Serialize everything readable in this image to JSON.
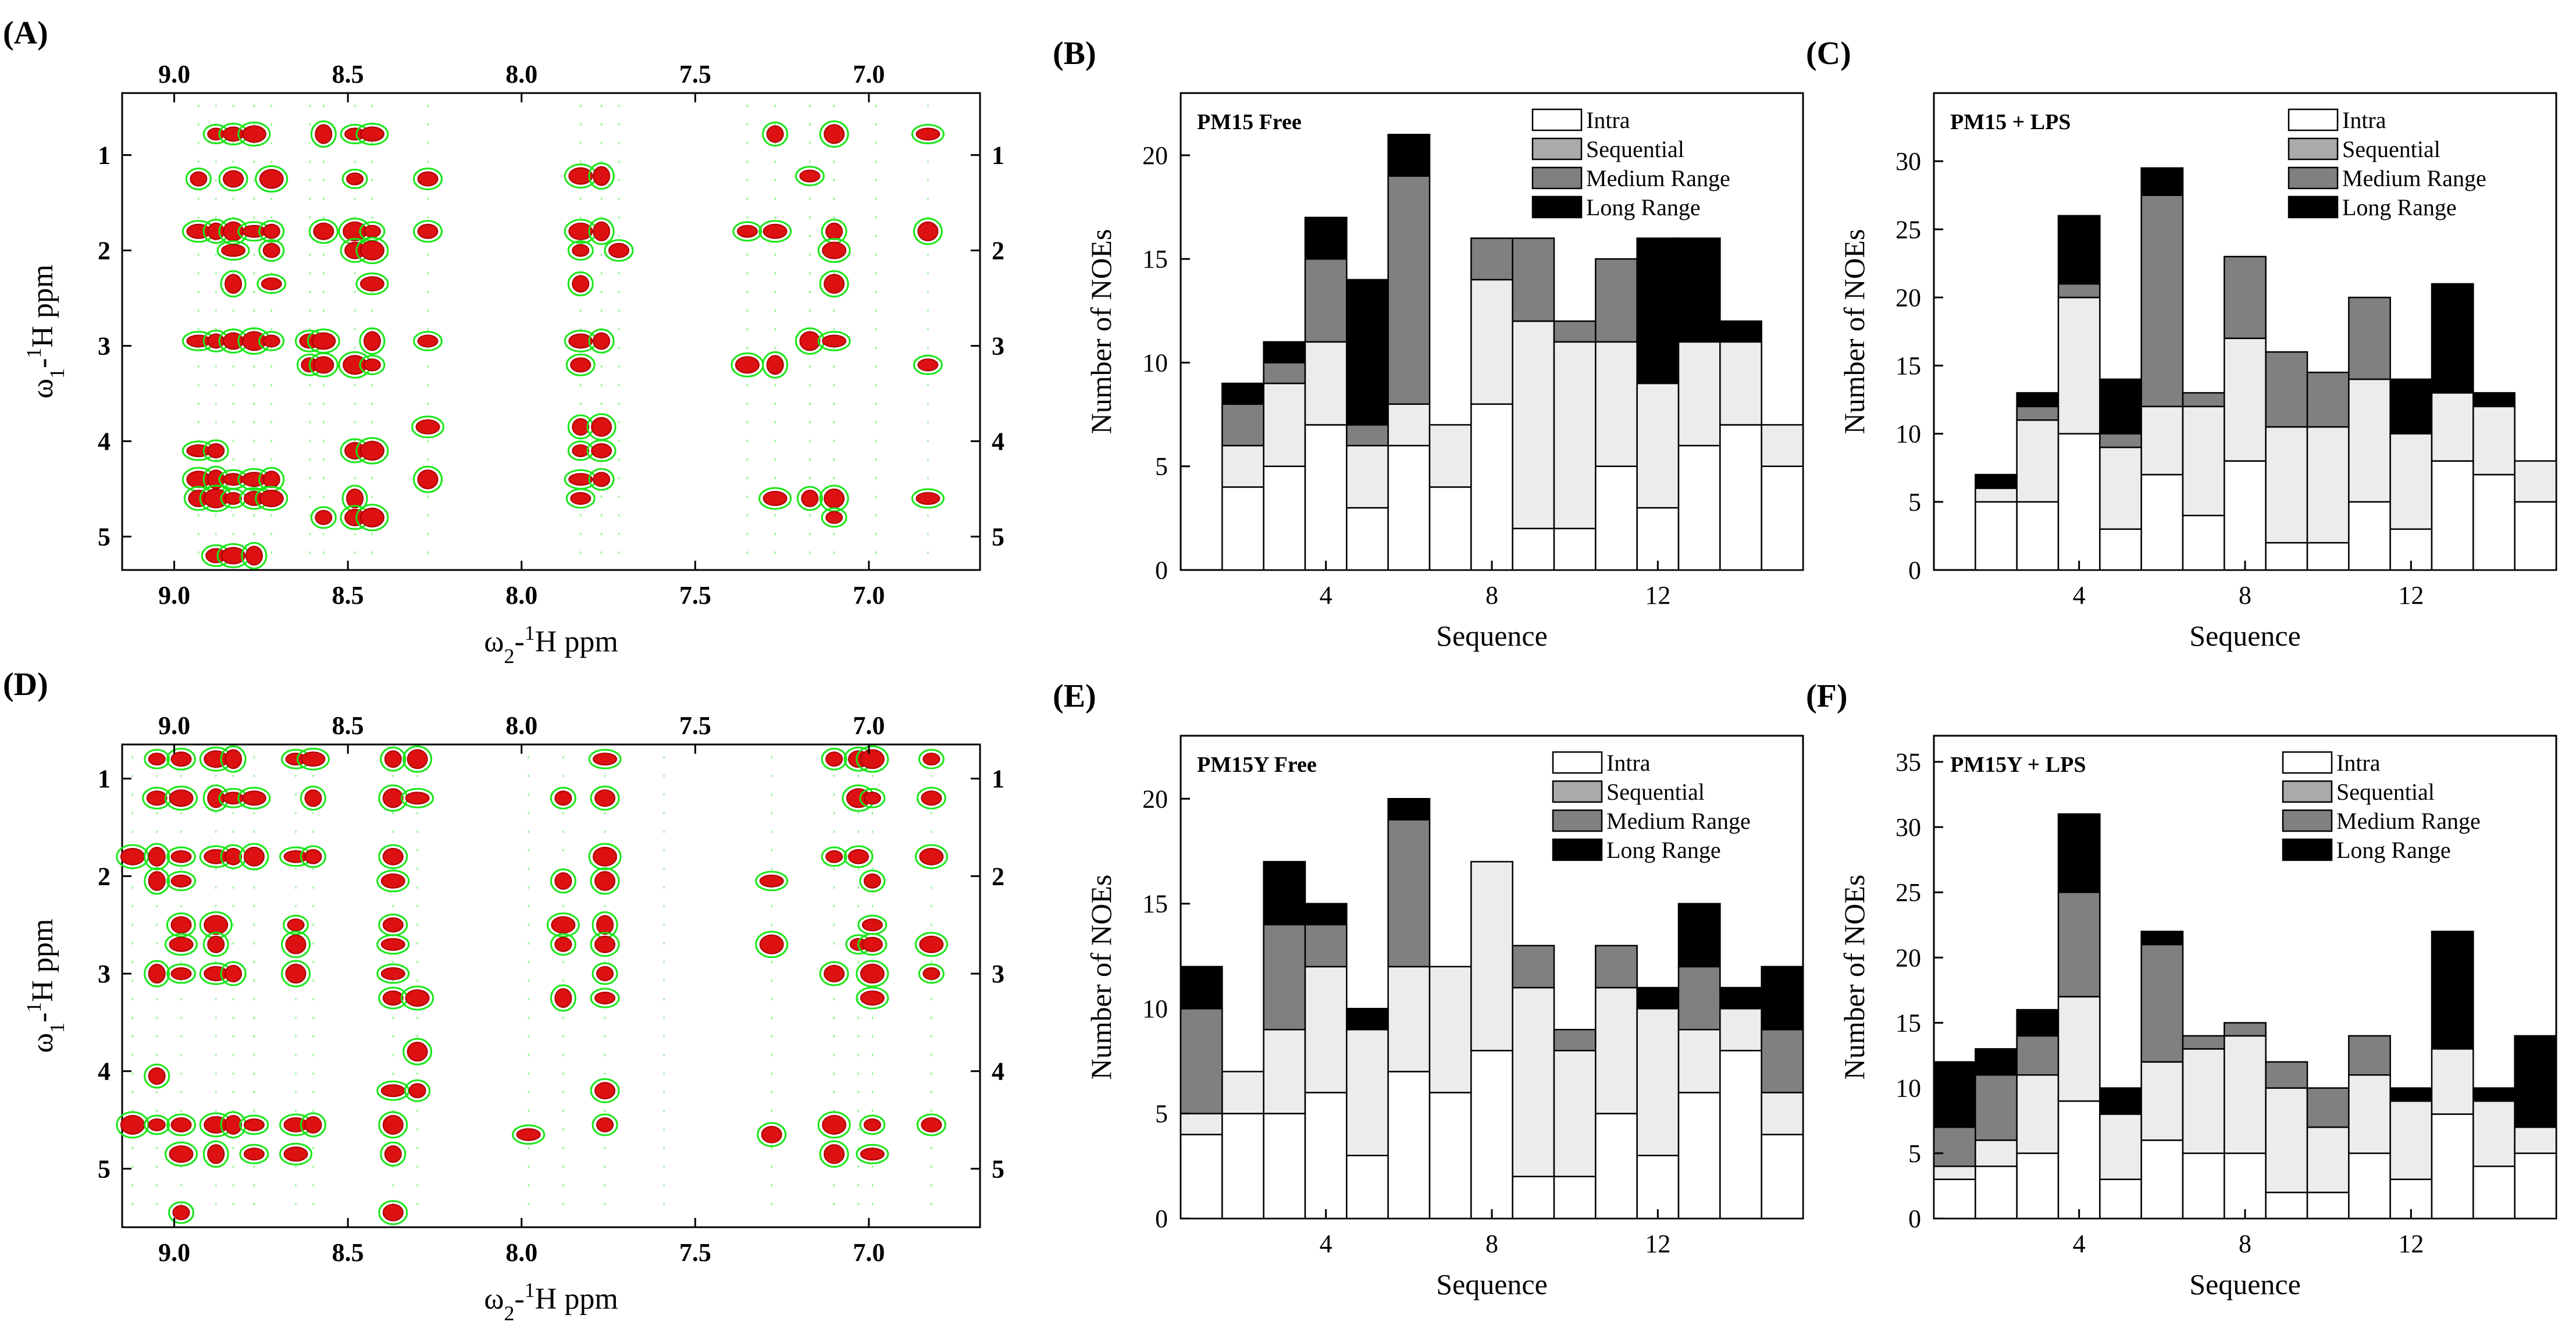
{
  "colors": {
    "nmr_outer": "#19e619",
    "nmr_inner": "#dd1111",
    "intra": "#ffffff",
    "sequential": "#ececec",
    "medium": "#808080",
    "long": "#000000"
  },
  "legend_labels": [
    "Intra",
    "Sequential",
    "Medium Range",
    "Long Range"
  ],
  "nmr_panels": [
    {
      "label": "(A)",
      "x_axis_label": "ω2-1H ppm",
      "y_axis_label": "ω1-1H ppm",
      "x_ticks": [
        "9.0",
        "8.5",
        "8.0",
        "7.5",
        "7.0"
      ],
      "y_ticks": [
        "1",
        "2",
        "3",
        "4",
        "5"
      ],
      "columns_ppm": [
        8.93,
        8.88,
        8.83,
        8.77,
        8.72,
        8.61,
        8.57,
        8.48,
        8.43,
        8.27,
        7.83,
        7.77,
        7.72,
        7.35,
        7.27,
        7.17,
        7.1,
        6.98,
        6.83
      ],
      "peaks": [
        [
          8.88,
          0.78
        ],
        [
          8.83,
          0.78
        ],
        [
          8.77,
          0.78
        ],
        [
          8.57,
          0.78
        ],
        [
          8.48,
          0.78
        ],
        [
          8.43,
          0.78
        ],
        [
          7.27,
          0.78
        ],
        [
          7.1,
          0.78
        ],
        [
          6.83,
          0.78
        ],
        [
          8.93,
          1.25
        ],
        [
          8.83,
          1.25
        ],
        [
          8.72,
          1.25
        ],
        [
          8.48,
          1.25
        ],
        [
          8.27,
          1.25
        ],
        [
          7.83,
          1.22
        ],
        [
          7.77,
          1.22
        ],
        [
          7.17,
          1.22
        ],
        [
          8.93,
          1.8
        ],
        [
          8.88,
          1.8
        ],
        [
          8.83,
          1.8
        ],
        [
          8.77,
          1.8
        ],
        [
          8.72,
          1.8
        ],
        [
          8.57,
          1.8
        ],
        [
          8.48,
          1.8
        ],
        [
          8.43,
          1.8
        ],
        [
          8.27,
          1.8
        ],
        [
          7.83,
          1.8
        ],
        [
          7.77,
          1.8
        ],
        [
          7.35,
          1.8
        ],
        [
          7.27,
          1.8
        ],
        [
          7.1,
          1.8
        ],
        [
          6.83,
          1.8
        ],
        [
          8.83,
          2.0
        ],
        [
          8.72,
          2.0
        ],
        [
          8.48,
          2.0
        ],
        [
          8.43,
          2.0
        ],
        [
          7.83,
          2.0
        ],
        [
          7.72,
          2.0
        ],
        [
          7.1,
          2.0
        ],
        [
          8.83,
          2.35
        ],
        [
          8.72,
          2.35
        ],
        [
          8.43,
          2.35
        ],
        [
          7.83,
          2.35
        ],
        [
          7.1,
          2.35
        ],
        [
          8.93,
          2.95
        ],
        [
          8.88,
          2.95
        ],
        [
          8.83,
          2.95
        ],
        [
          8.77,
          2.95
        ],
        [
          8.72,
          2.95
        ],
        [
          8.61,
          2.95
        ],
        [
          8.57,
          2.95
        ],
        [
          8.43,
          2.95
        ],
        [
          8.27,
          2.95
        ],
        [
          7.83,
          2.95
        ],
        [
          7.77,
          2.95
        ],
        [
          7.17,
          2.95
        ],
        [
          7.1,
          2.95
        ],
        [
          8.61,
          3.2
        ],
        [
          8.57,
          3.2
        ],
        [
          8.48,
          3.2
        ],
        [
          8.43,
          3.2
        ],
        [
          7.83,
          3.2
        ],
        [
          7.35,
          3.2
        ],
        [
          7.27,
          3.2
        ],
        [
          6.83,
          3.2
        ],
        [
          8.27,
          3.85
        ],
        [
          7.83,
          3.85
        ],
        [
          7.77,
          3.85
        ],
        [
          8.93,
          4.1
        ],
        [
          8.88,
          4.1
        ],
        [
          8.48,
          4.1
        ],
        [
          8.43,
          4.1
        ],
        [
          7.83,
          4.1
        ],
        [
          7.77,
          4.1
        ],
        [
          8.93,
          4.4
        ],
        [
          8.88,
          4.4
        ],
        [
          8.83,
          4.4
        ],
        [
          8.77,
          4.4
        ],
        [
          8.72,
          4.4
        ],
        [
          8.27,
          4.4
        ],
        [
          7.83,
          4.4
        ],
        [
          7.77,
          4.4
        ],
        [
          8.93,
          4.6
        ],
        [
          8.88,
          4.6
        ],
        [
          8.83,
          4.6
        ],
        [
          8.77,
          4.6
        ],
        [
          8.72,
          4.6
        ],
        [
          8.48,
          4.6
        ],
        [
          7.83,
          4.6
        ],
        [
          7.27,
          4.6
        ],
        [
          7.17,
          4.6
        ],
        [
          7.1,
          4.6
        ],
        [
          6.83,
          4.6
        ],
        [
          8.57,
          4.8
        ],
        [
          8.48,
          4.8
        ],
        [
          8.43,
          4.8
        ],
        [
          7.1,
          4.8
        ],
        [
          8.88,
          5.2
        ],
        [
          8.83,
          5.2
        ],
        [
          8.77,
          5.2
        ]
      ]
    },
    {
      "label": "(D)",
      "x_axis_label": "ω2-1H ppm",
      "y_axis_label": "ω1-1H ppm",
      "x_ticks": [
        "9.0",
        "8.5",
        "8.0",
        "7.5",
        "7.0"
      ],
      "y_ticks": [
        "1",
        "2",
        "3",
        "4",
        "5"
      ],
      "columns_ppm": [
        9.12,
        9.05,
        8.98,
        8.88,
        8.83,
        8.77,
        8.65,
        8.6,
        8.37,
        8.3,
        7.98,
        7.88,
        7.76,
        7.59,
        7.28,
        7.1,
        7.03,
        6.99,
        6.82
      ],
      "peaks": [
        [
          9.05,
          0.8
        ],
        [
          8.98,
          0.8
        ],
        [
          8.88,
          0.8
        ],
        [
          8.83,
          0.8
        ],
        [
          8.65,
          0.8
        ],
        [
          8.6,
          0.8
        ],
        [
          8.37,
          0.8
        ],
        [
          8.3,
          0.8
        ],
        [
          7.76,
          0.8
        ],
        [
          7.1,
          0.8
        ],
        [
          7.03,
          0.8
        ],
        [
          6.99,
          0.8
        ],
        [
          6.82,
          0.8
        ],
        [
          9.05,
          1.2
        ],
        [
          8.98,
          1.2
        ],
        [
          8.88,
          1.2
        ],
        [
          8.83,
          1.2
        ],
        [
          8.77,
          1.2
        ],
        [
          8.6,
          1.2
        ],
        [
          8.37,
          1.2
        ],
        [
          8.3,
          1.2
        ],
        [
          7.88,
          1.2
        ],
        [
          7.76,
          1.2
        ],
        [
          7.03,
          1.2
        ],
        [
          6.99,
          1.2
        ],
        [
          6.82,
          1.2
        ],
        [
          9.12,
          1.8
        ],
        [
          9.05,
          1.8
        ],
        [
          8.98,
          1.8
        ],
        [
          8.88,
          1.8
        ],
        [
          8.83,
          1.8
        ],
        [
          8.77,
          1.8
        ],
        [
          8.65,
          1.8
        ],
        [
          8.6,
          1.8
        ],
        [
          8.37,
          1.8
        ],
        [
          7.76,
          1.8
        ],
        [
          7.1,
          1.8
        ],
        [
          7.03,
          1.8
        ],
        [
          6.82,
          1.8
        ],
        [
          9.05,
          2.05
        ],
        [
          8.98,
          2.05
        ],
        [
          8.37,
          2.05
        ],
        [
          7.88,
          2.05
        ],
        [
          7.76,
          2.05
        ],
        [
          7.28,
          2.05
        ],
        [
          6.99,
          2.05
        ],
        [
          8.98,
          2.5
        ],
        [
          8.88,
          2.5
        ],
        [
          8.65,
          2.5
        ],
        [
          8.37,
          2.5
        ],
        [
          7.88,
          2.5
        ],
        [
          7.76,
          2.5
        ],
        [
          6.99,
          2.5
        ],
        [
          8.98,
          2.7
        ],
        [
          8.88,
          2.7
        ],
        [
          8.65,
          2.7
        ],
        [
          8.37,
          2.7
        ],
        [
          7.88,
          2.7
        ],
        [
          7.76,
          2.7
        ],
        [
          7.28,
          2.7
        ],
        [
          7.03,
          2.7
        ],
        [
          6.99,
          2.7
        ],
        [
          6.82,
          2.7
        ],
        [
          9.05,
          3.0
        ],
        [
          8.98,
          3.0
        ],
        [
          8.88,
          3.0
        ],
        [
          8.83,
          3.0
        ],
        [
          8.65,
          3.0
        ],
        [
          8.37,
          3.0
        ],
        [
          7.76,
          3.0
        ],
        [
          7.1,
          3.0
        ],
        [
          6.99,
          3.0
        ],
        [
          6.82,
          3.0
        ],
        [
          8.37,
          3.25
        ],
        [
          8.3,
          3.25
        ],
        [
          7.88,
          3.25
        ],
        [
          7.76,
          3.25
        ],
        [
          6.99,
          3.25
        ],
        [
          9.05,
          4.05
        ],
        [
          8.3,
          3.8
        ],
        [
          8.37,
          4.2
        ],
        [
          8.3,
          4.2
        ],
        [
          7.76,
          4.2
        ],
        [
          9.12,
          4.55
        ],
        [
          9.05,
          4.55
        ],
        [
          8.98,
          4.55
        ],
        [
          8.88,
          4.55
        ],
        [
          8.83,
          4.55
        ],
        [
          8.77,
          4.55
        ],
        [
          8.65,
          4.55
        ],
        [
          8.6,
          4.55
        ],
        [
          8.37,
          4.55
        ],
        [
          7.98,
          4.65
        ],
        [
          7.76,
          4.55
        ],
        [
          7.28,
          4.65
        ],
        [
          7.1,
          4.55
        ],
        [
          6.99,
          4.55
        ],
        [
          6.82,
          4.55
        ],
        [
          8.98,
          4.85
        ],
        [
          8.88,
          4.85
        ],
        [
          8.77,
          4.85
        ],
        [
          8.65,
          4.85
        ],
        [
          8.37,
          4.85
        ],
        [
          7.1,
          4.85
        ],
        [
          6.99,
          4.85
        ],
        [
          8.98,
          5.45
        ],
        [
          8.37,
          5.45
        ]
      ]
    }
  ],
  "chart_data": [
    {
      "type": "bar",
      "panel_label": "(B)",
      "title": "PM15 Free",
      "xlabel": "Sequence",
      "ylabel": "Number of NOEs",
      "ylim": [
        0,
        23
      ],
      "xlim": [
        0.5,
        15.5
      ],
      "x_ticks": [
        4,
        8,
        12
      ],
      "y_ticks": [
        0,
        5,
        10,
        15,
        20
      ],
      "categories": [
        1,
        2,
        3,
        4,
        5,
        6,
        7,
        8,
        9,
        10,
        11,
        12,
        13,
        14,
        15
      ],
      "series": [
        {
          "name": "Intra",
          "values": [
            0,
            4,
            5,
            7,
            3,
            6,
            4,
            8,
            2,
            2,
            5,
            3,
            6,
            7,
            5
          ]
        },
        {
          "name": "Sequential",
          "values": [
            0,
            2,
            4,
            4,
            3,
            2,
            3,
            6,
            10,
            9,
            6,
            6,
            5,
            4,
            2
          ]
        },
        {
          "name": "Medium Range",
          "values": [
            0,
            2,
            1,
            4,
            1,
            11,
            0,
            2,
            4,
            1,
            4,
            0,
            0,
            0,
            0
          ]
        },
        {
          "name": "Long Range",
          "values": [
            0,
            1,
            1,
            2,
            7,
            2,
            0,
            0,
            0,
            0,
            0,
            7,
            5,
            1,
            0
          ]
        }
      ]
    },
    {
      "type": "bar",
      "panel_label": "(C)",
      "title": "PM15 + LPS",
      "xlabel": "Sequence",
      "ylabel": "Number of NOEs",
      "ylim": [
        0,
        35
      ],
      "xlim": [
        0.5,
        15.5
      ],
      "x_ticks": [
        4,
        8,
        12
      ],
      "y_ticks": [
        0,
        5,
        10,
        15,
        20,
        25,
        30
      ],
      "categories": [
        1,
        2,
        3,
        4,
        5,
        6,
        7,
        8,
        9,
        10,
        11,
        12,
        13,
        14,
        15
      ],
      "series": [
        {
          "name": "Intra",
          "values": [
            0,
            5,
            5,
            10,
            3,
            7,
            4,
            8,
            2,
            2,
            5,
            3,
            8,
            7,
            5
          ]
        },
        {
          "name": "Sequential",
          "values": [
            0,
            1,
            6,
            10,
            6,
            5,
            8,
            9,
            8.5,
            8.5,
            9,
            7,
            5,
            5,
            3
          ]
        },
        {
          "name": "Medium Range",
          "values": [
            0,
            0,
            1,
            1,
            1,
            15.5,
            1,
            6,
            5.5,
            4,
            6,
            0,
            0,
            0,
            0
          ]
        },
        {
          "name": "Long Range",
          "values": [
            0,
            1,
            1,
            5,
            4,
            2,
            0,
            0,
            0,
            0,
            0,
            4,
            8,
            1,
            0
          ]
        }
      ]
    },
    {
      "type": "bar",
      "panel_label": "(E)",
      "title": "PM15Y Free",
      "xlabel": "Sequence",
      "ylabel": "Number of NOEs",
      "ylim": [
        0,
        23
      ],
      "xlim": [
        0.5,
        15.5
      ],
      "x_ticks": [
        4,
        8,
        12
      ],
      "y_ticks": [
        0,
        5,
        10,
        15,
        20
      ],
      "categories": [
        1,
        2,
        3,
        4,
        5,
        6,
        7,
        8,
        9,
        10,
        11,
        12,
        13,
        14,
        15
      ],
      "series": [
        {
          "name": "Intra",
          "values": [
            4,
            5,
            5,
            6,
            3,
            7,
            6,
            8,
            2,
            2,
            5,
            3,
            6,
            8,
            4
          ]
        },
        {
          "name": "Sequential",
          "values": [
            1,
            2,
            4,
            6,
            6,
            5,
            6,
            9,
            9,
            6,
            6,
            7,
            3,
            2,
            2
          ]
        },
        {
          "name": "Medium Range",
          "values": [
            5,
            0,
            5,
            2,
            0,
            7,
            0,
            0,
            2,
            1,
            2,
            0,
            3,
            0,
            3
          ]
        },
        {
          "name": "Long Range",
          "values": [
            2,
            0,
            3,
            1,
            1,
            1,
            0,
            0,
            0,
            0,
            0,
            1,
            3,
            1,
            3
          ]
        }
      ]
    },
    {
      "type": "bar",
      "panel_label": "(F)",
      "title": "PM15Y + LPS",
      "xlabel": "Sequence",
      "ylabel": "Number of NOEs",
      "ylim": [
        0,
        37
      ],
      "xlim": [
        0.5,
        15.5
      ],
      "x_ticks": [
        4,
        8,
        12
      ],
      "y_ticks": [
        0,
        5,
        10,
        15,
        20,
        25,
        30,
        35
      ],
      "categories": [
        1,
        2,
        3,
        4,
        5,
        6,
        7,
        8,
        9,
        10,
        11,
        12,
        13,
        14,
        15
      ],
      "series": [
        {
          "name": "Intra",
          "values": [
            3,
            4,
            5,
            9,
            3,
            6,
            5,
            5,
            2,
            2,
            5,
            3,
            8,
            4,
            5
          ]
        },
        {
          "name": "Sequential",
          "values": [
            1,
            2,
            6,
            8,
            5,
            6,
            8,
            9,
            8,
            5,
            6,
            6,
            5,
            5,
            2
          ]
        },
        {
          "name": "Medium Range",
          "values": [
            3,
            5,
            3,
            8,
            0,
            9,
            1,
            1,
            2,
            3,
            3,
            0,
            0,
            0,
            0
          ]
        },
        {
          "name": "Long Range",
          "values": [
            5,
            2,
            2,
            6,
            2,
            1,
            0,
            0,
            0,
            0,
            0,
            1,
            9,
            1,
            7
          ]
        }
      ]
    }
  ]
}
